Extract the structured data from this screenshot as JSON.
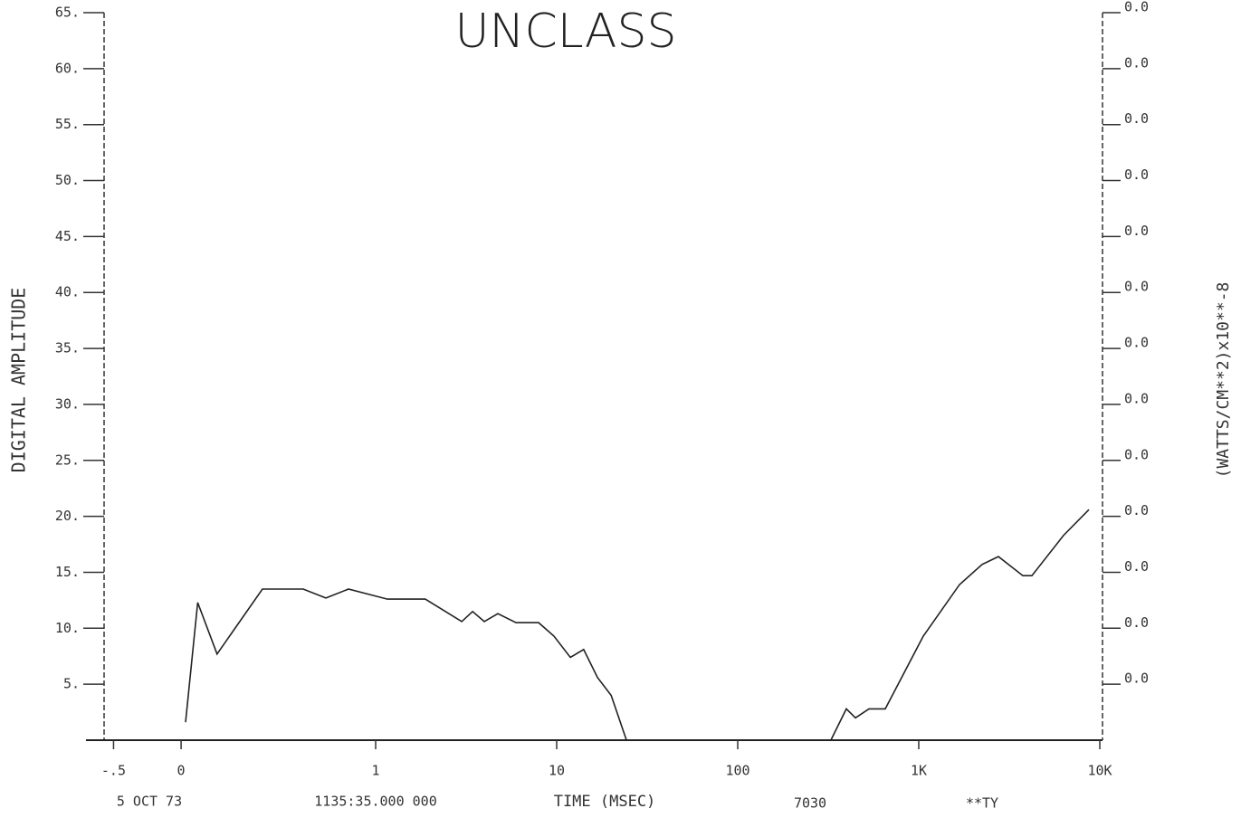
{
  "chart_data": {
    "type": "line",
    "title": "UNCLASS",
    "y_label": "DIGITAL AMPLITUDE",
    "y2_label": "(WATTS/CM**2)x10**-8",
    "x_label": "TIME (MSEC)",
    "footer": [
      "5 OCT 73",
      "1135:35.000 000",
      "7030",
      "**TY"
    ],
    "x": [
      0.033,
      0.104,
      0.133,
      0.237,
      0.398,
      0.531,
      0.708,
      1.16,
      1.88,
      2.99,
      3.43,
      3.98,
      4.73,
      5.96,
      7.94,
      9.66,
      11.9,
      14.1,
      16.8,
      20.0,
      24.3,
      100,
      327,
      398,
      447,
      531,
      653,
      1059,
      1679,
      2239,
      2754,
      3758,
      4217,
      6310,
      8710
    ],
    "series": [
      {
        "name": "DIGITAL AMPLITUDE",
        "color": "#222222",
        "values": [
          1.6,
          12.3,
          7.7,
          13.5,
          13.5,
          12.7,
          13.5,
          12.6,
          12.6,
          10.6,
          11.5,
          10.6,
          11.3,
          10.5,
          10.5,
          9.3,
          7.4,
          8.1,
          5.6,
          4.0,
          0,
          null,
          0,
          2.8,
          2.0,
          2.8,
          2.8,
          9.3,
          13.9,
          15.7,
          16.4,
          14.7,
          14.7,
          18.3,
          20.6
        ]
      }
    ],
    "xscale": "log",
    "xlim": [
      -0.57,
      10000
    ],
    "xticks": [
      {
        "value": -0.5,
        "label": "-.5"
      },
      0,
      1,
      10,
      100,
      {
        "value": 1000,
        "label": "1K"
      },
      {
        "value": 10000,
        "label": "10K"
      }
    ],
    "ylim": [
      0,
      65
    ],
    "yticks": [
      {
        "value": 5,
        "label": "5."
      },
      {
        "value": 10,
        "label": "10."
      },
      {
        "value": 15,
        "label": "15."
      },
      {
        "value": 20,
        "label": "20."
      },
      {
        "value": 25,
        "label": "25."
      },
      {
        "value": 30,
        "label": "30."
      },
      {
        "value": 35,
        "label": "35."
      },
      {
        "value": 40,
        "label": "40."
      },
      {
        "value": 45,
        "label": "45."
      },
      {
        "value": 50,
        "label": "50."
      },
      {
        "value": 55,
        "label": "55."
      },
      {
        "value": 60,
        "label": "60."
      },
      {
        "value": 65,
        "label": "65."
      }
    ],
    "y2_tick_labels": [
      "0.0",
      "0.0",
      "0.0",
      "0.0",
      "0.0",
      "0.0",
      "0.0",
      "0.0",
      "0.0",
      "0.0",
      "0.0",
      "0.0",
      "0.0"
    ]
  }
}
